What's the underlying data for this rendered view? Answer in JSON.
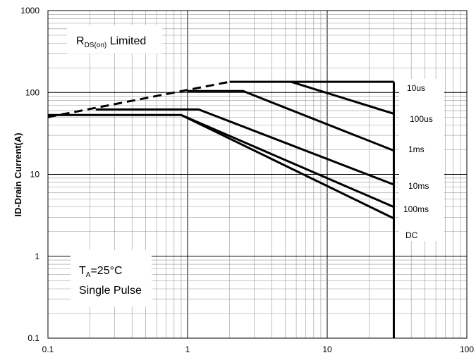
{
  "chart_data": {
    "type": "line",
    "title": "",
    "xlabel": "",
    "ylabel": "ID-Drain Current(A)",
    "x_scale": "log",
    "y_scale": "log",
    "xlim": [
      0.1,
      100
    ],
    "ylim": [
      0.1,
      1000
    ],
    "x_ticks": [
      "0.1",
      "1",
      "10",
      "100"
    ],
    "y_ticks": [
      "0.1",
      "1",
      "10",
      "100",
      "1000"
    ],
    "grid": true,
    "rds_limit": {
      "label_main": "R",
      "label_sub": "DS(on)",
      "label_rest": " Limited",
      "x": [
        0.1,
        2
      ],
      "y": [
        50,
        135
      ],
      "style": "dashed"
    },
    "series": [
      {
        "name": "10us",
        "x": [
          2,
          16.5,
          30
        ],
        "y": [
          135,
          135,
          135
        ]
      },
      {
        "name": "100us",
        "x": [
          5.5,
          30
        ],
        "y": [
          135,
          55
        ]
      },
      {
        "name": "1ms",
        "x": [
          1,
          2.5,
          30
        ],
        "y": [
          104,
          104,
          19.5
        ]
      },
      {
        "name": "10ms",
        "x": [
          0.22,
          1.2,
          30
        ],
        "y": [
          62,
          62,
          7.5
        ]
      },
      {
        "name": "100ms",
        "x": [
          0.1,
          0.9,
          30
        ],
        "y": [
          53,
          53,
          4
        ]
      },
      {
        "name": "DC",
        "x": [
          0.9,
          30
        ],
        "y": [
          53,
          2.9
        ]
      }
    ],
    "vertical_limit": {
      "x": 30,
      "y": [
        0.1,
        135
      ]
    },
    "annotation": {
      "line1_main": "T",
      "line1_sub": "A",
      "line1_rest": "=25°C",
      "line2": "Single Pulse"
    }
  }
}
